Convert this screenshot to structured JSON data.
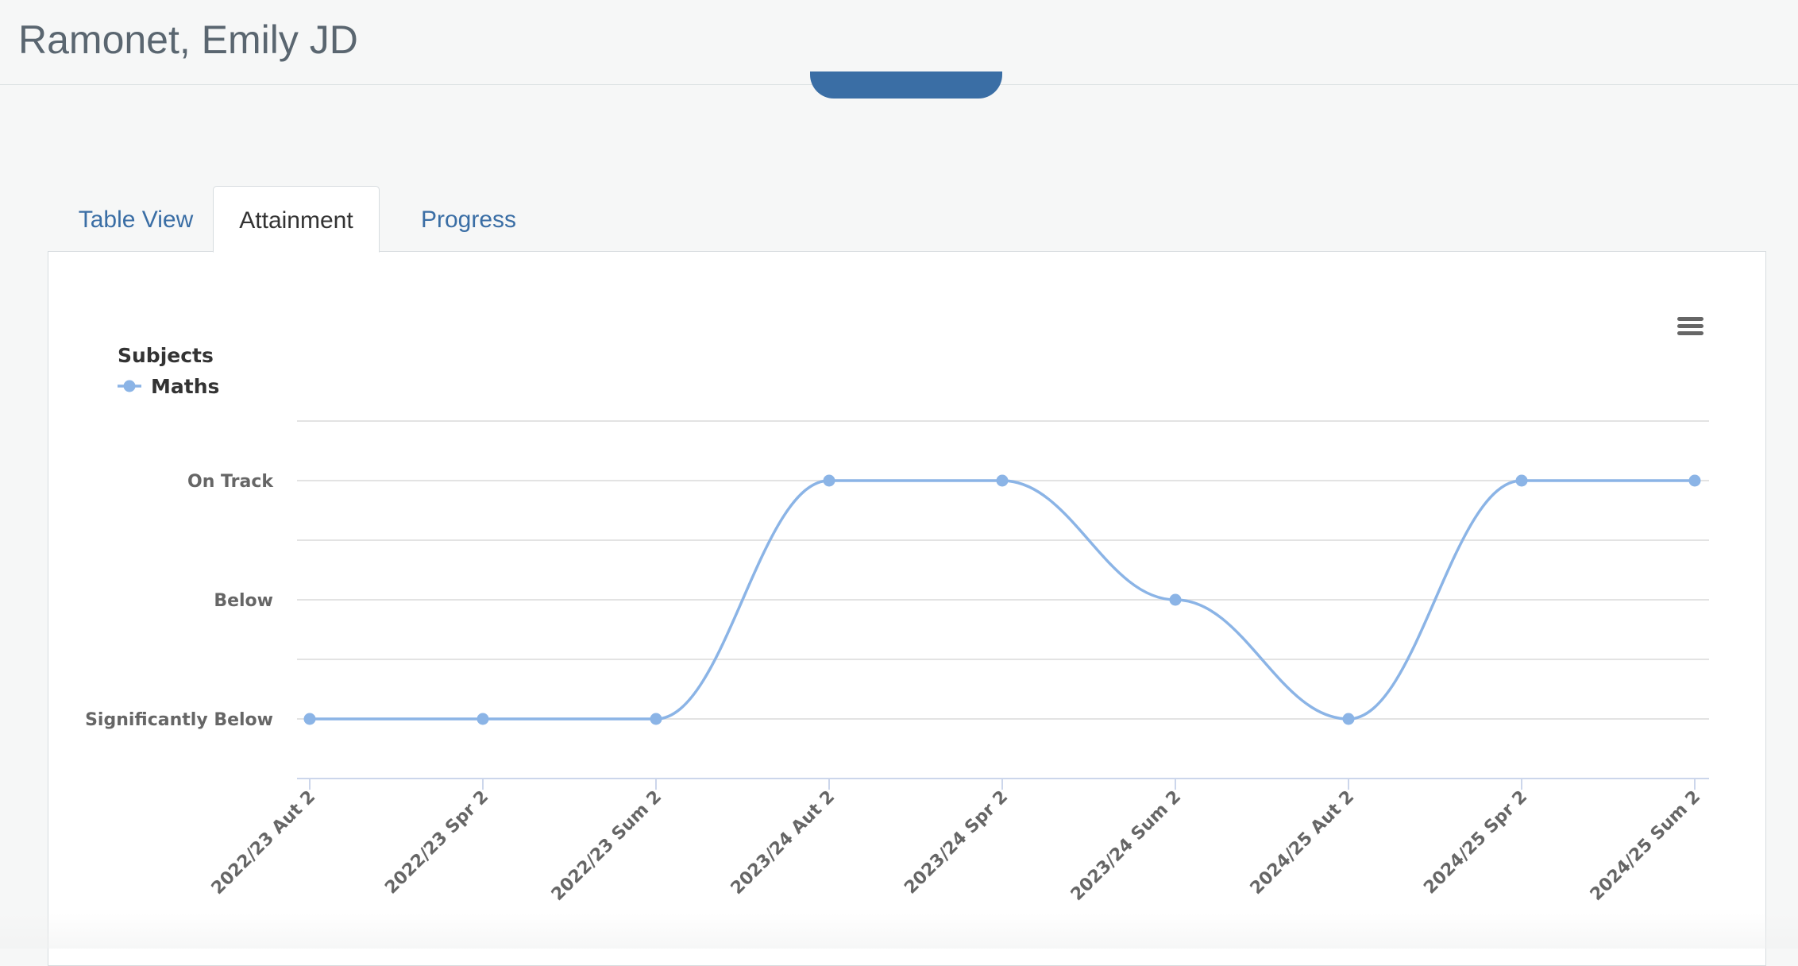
{
  "header": {
    "student_name": "Ramonet, Emily JD"
  },
  "tabs": [
    {
      "label": "Table View",
      "active": false
    },
    {
      "label": "Attainment",
      "active": true
    },
    {
      "label": "Progress",
      "active": false
    }
  ],
  "colors": {
    "series": "#8bb4e6",
    "link": "#3a6ea5",
    "button": "#3a6ea5"
  },
  "chart_data": {
    "type": "line",
    "title": "",
    "legend_title": "Subjects",
    "legend_placement": "top-left",
    "xlabel": "",
    "ylabel": "",
    "categories": [
      "2022/23 Aut 2",
      "2022/23 Spr 2",
      "2022/23 Sum 2",
      "2023/24 Aut 2",
      "2023/24 Spr 2",
      "2023/24 Sum 2",
      "2024/25 Aut 2",
      "2024/25 Spr 2",
      "2024/25 Sum 2"
    ],
    "y_levels": [
      "Significantly Below",
      "Below",
      "On Track"
    ],
    "ylim": [
      -0.5,
      2.5
    ],
    "grid": true,
    "smooth": true,
    "series": [
      {
        "name": "Maths",
        "color": "#8bb4e6",
        "values": [
          0,
          0,
          0,
          2,
          2,
          1,
          0,
          2,
          2
        ]
      }
    ]
  },
  "icons": {
    "menu": "hamburger-menu-icon"
  }
}
